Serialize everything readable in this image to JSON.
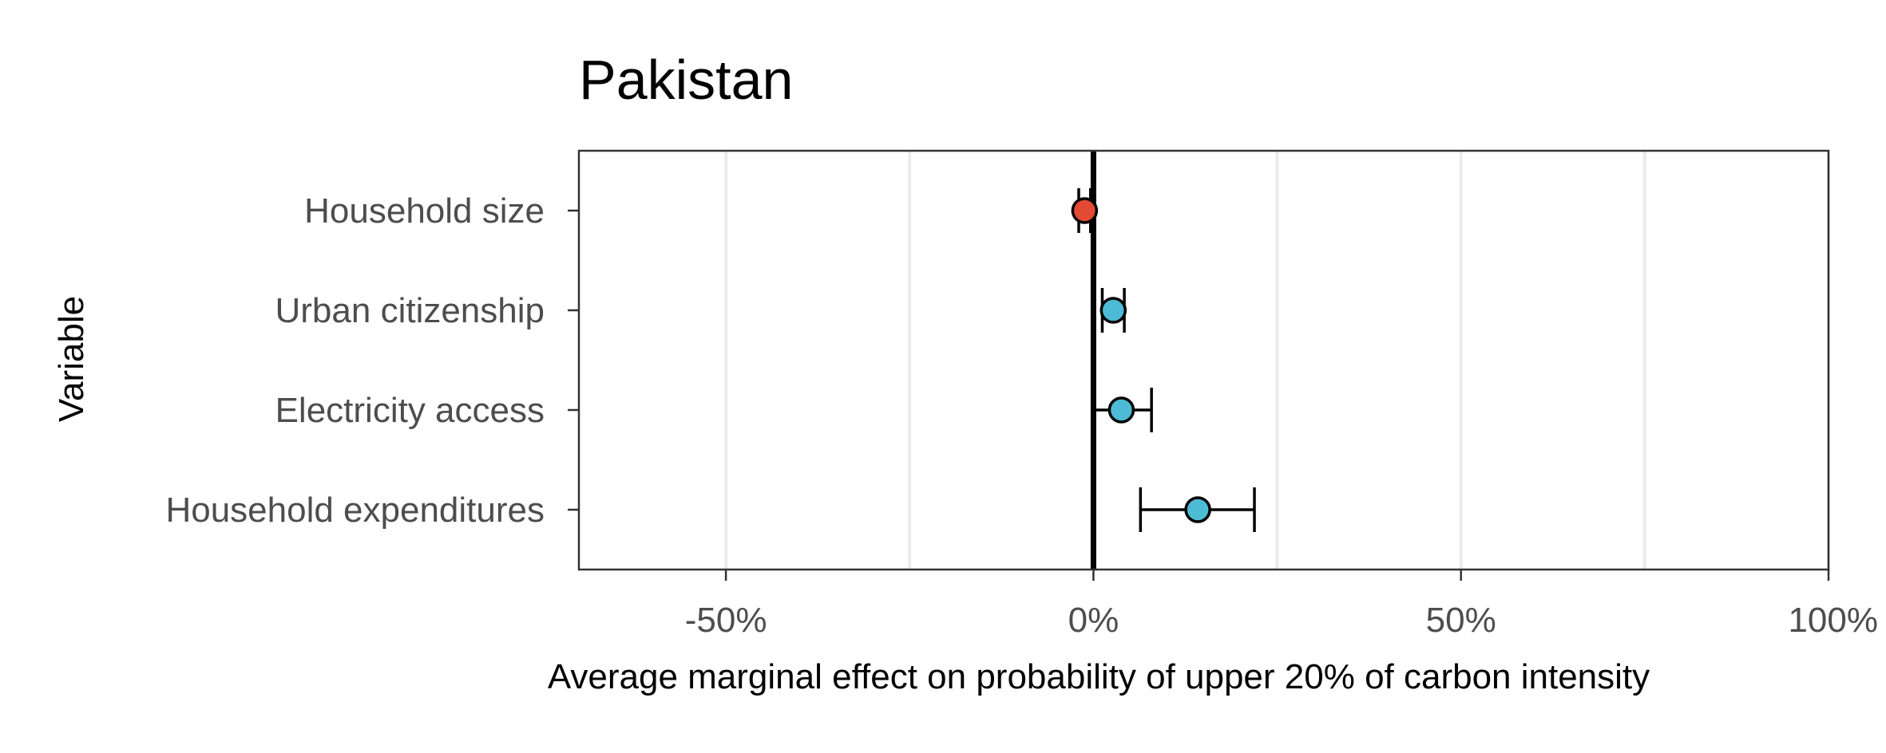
{
  "chart_data": {
    "type": "scatter",
    "title": "Pakistan",
    "xlabel": "Average marginal effect on probability of upper 20% of carbon intensity",
    "ylabel": "Variable",
    "xlim": [
      -70,
      100
    ],
    "x_ticks": [
      {
        "value": -50,
        "label": "-50%"
      },
      {
        "value": 0,
        "label": "0%"
      },
      {
        "value": 50,
        "label": "50%"
      },
      {
        "value": 100,
        "label": "100%"
      }
    ],
    "x_minor_grid": [
      -25,
      25,
      75
    ],
    "reference_line": 0,
    "grid": true,
    "legend": "none",
    "colors": {
      "negative": "#e34a33",
      "positive": "#4dbbd5",
      "frame": "#333333",
      "grid": "#ebebeb",
      "errorbar": "#000000"
    },
    "categories": [
      "Household size",
      "Urban citizenship",
      "Electricity access",
      "Household expenditures"
    ],
    "points": [
      {
        "category": "Household size",
        "estimate": -1.2,
        "lower": -2.0,
        "upper": -0.4,
        "sign": "negative"
      },
      {
        "category": "Urban citizenship",
        "estimate": 2.7,
        "lower": 1.2,
        "upper": 4.2,
        "sign": "positive"
      },
      {
        "category": "Electricity access",
        "estimate": 3.8,
        "lower": 0.0,
        "upper": 7.9,
        "sign": "positive"
      },
      {
        "category": "Household expenditures",
        "estimate": 14.2,
        "lower": 6.4,
        "upper": 21.9,
        "sign": "positive"
      }
    ]
  }
}
